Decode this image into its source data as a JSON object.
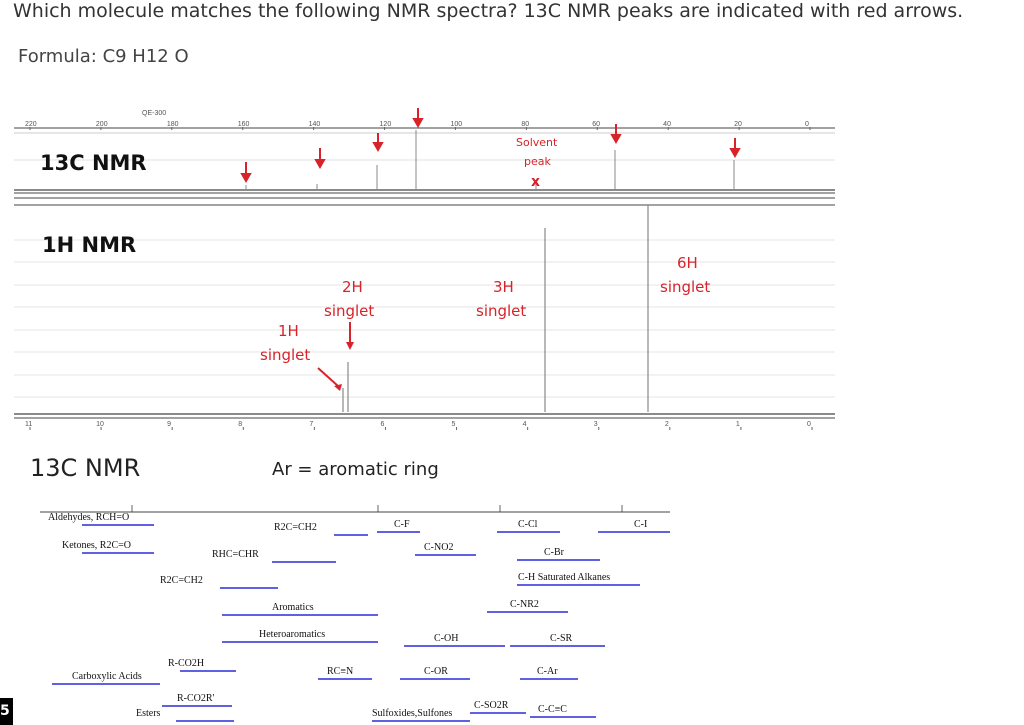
{
  "question": "Which molecule matches the following NMR spectra? 13C NMR peaks are indicated with red arrows.",
  "formula": "Formula: C9 H12 O",
  "spectrum": {
    "instrument": "QE-300",
    "c13_label": "13C NMR",
    "h1_label": "1H NMR",
    "c13_ticks": [
      "220",
      "200",
      "180",
      "160",
      "140",
      "120",
      "100",
      "80",
      "60",
      "40",
      "20",
      "0"
    ],
    "h1_ticks": [
      "11",
      "10",
      "9",
      "8",
      "7",
      "6",
      "5",
      "4",
      "3",
      "2",
      "1",
      "0"
    ],
    "solvent_label_1": "Solvent",
    "solvent_label_2": "peak",
    "solvent_mark": "x",
    "h1_annotations": [
      {
        "count": "2H",
        "mult": "singlet"
      },
      {
        "count": "1H",
        "mult": "singlet"
      },
      {
        "count": "3H",
        "mult": "singlet"
      },
      {
        "count": "6H",
        "mult": "singlet"
      }
    ]
  },
  "table_title": "13C NMR",
  "ar_note": "Ar = aromatic ring",
  "shift_table": {
    "rows": [
      "Aldehydes, RCH=O",
      "Ketones, R2C=O",
      "R2C=CH2",
      "RHC=CHR",
      "C-F",
      "C-Cl",
      "C-I",
      "C-NO2",
      "C-Br",
      "R2C=CH2",
      "C-H Saturated Alkanes",
      "Aromatics",
      "C-NR2",
      "Heteroaromatics",
      "C-OH",
      "C-SR",
      "R-CO2H",
      "Carboxylic Acids",
      "RC≡N",
      "C-OR",
      "C-Ar",
      "R-CO2R'",
      "Esters",
      "Sulfoxides,Sulfones",
      "C-SO2R",
      "C-C≡C"
    ]
  },
  "corner_char": "5",
  "colors": {
    "accent": "#d8232a",
    "bar": "#2b2bd9"
  }
}
